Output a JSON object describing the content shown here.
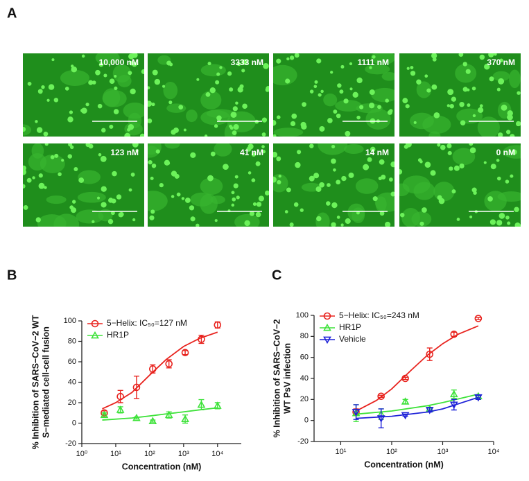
{
  "panel_labels": [
    "A",
    "B",
    "C"
  ],
  "micrographs": [
    "10,000 nM",
    "3333 nM",
    "1111 nM",
    "370 nM",
    "123 nM",
    "41 nM",
    "14 nM",
    "0 nM"
  ],
  "chart_data": [
    {
      "type": "scatter",
      "log_x": true,
      "xlabel": "Concentration (nM)",
      "ylabel": [
        "% Inhibition of SARS−CoV−2 WT",
        "S−mediated cell-cell fusion"
      ],
      "xlim": [
        1,
        50000
      ],
      "xticks": [
        {
          "value": 1,
          "label": "10⁰"
        },
        {
          "value": 10,
          "label": "10¹"
        },
        {
          "value": 100,
          "label": "10²"
        },
        {
          "value": 1000,
          "label": "10³"
        },
        {
          "value": 10000,
          "label": "10⁴"
        }
      ],
      "ylim": [
        -20,
        100
      ],
      "yticks": [
        -20,
        0,
        20,
        40,
        60,
        80,
        100
      ],
      "series": [
        {
          "name": "5−Helix: IC₅₀=127 nM",
          "color": "#e8231e",
          "marker": "circle",
          "x": [
            4.6,
            13.7,
            41,
            123,
            370,
            1111,
            3333,
            10000
          ],
          "values": [
            10,
            26,
            35,
            53,
            58,
            69,
            82,
            96
          ],
          "errors": [
            2,
            6,
            11,
            4,
            4,
            2,
            4,
            3
          ],
          "fit_x": [
            4,
            10,
            30,
            100,
            300,
            1000,
            3000,
            10000
          ],
          "fit": [
            14,
            20,
            30,
            47,
            62,
            75,
            83,
            89
          ]
        },
        {
          "name": "HR1P",
          "color": "#3ee23a",
          "marker": "triangle-up",
          "x": [
            4.6,
            13.7,
            41,
            123,
            370,
            1111,
            3333,
            10000
          ],
          "values": [
            8,
            13,
            5,
            2,
            8,
            4,
            18,
            17
          ],
          "errors": [
            2,
            3,
            1,
            1,
            3,
            4,
            5,
            3
          ],
          "fit_x": [
            4,
            30,
            100,
            300,
            1000,
            3000,
            10000
          ],
          "fit": [
            3,
            5,
            7,
            9,
            11,
            13,
            15
          ]
        }
      ]
    },
    {
      "type": "scatter",
      "log_x": true,
      "xlabel": "Concentration (nM)",
      "ylabel": [
        "% Inhibition of SARS−CoV−2",
        "WT PsV infection"
      ],
      "xlim": [
        3,
        10000
      ],
      "xticks": [
        {
          "value": 10,
          "label": "10¹"
        },
        {
          "value": 100,
          "label": "10²"
        },
        {
          "value": 1000,
          "label": "10³"
        },
        {
          "value": 10000,
          "label": "10⁴"
        }
      ],
      "ylim": [
        -20,
        100
      ],
      "yticks": [
        -20,
        0,
        20,
        40,
        60,
        80,
        100
      ],
      "series": [
        {
          "name": "5−Helix: IC₅₀=243 nM",
          "color": "#e8231e",
          "marker": "circle",
          "x": [
            20,
            62,
            185,
            556,
            1667,
            5000
          ],
          "values": [
            8,
            23,
            40,
            63,
            82,
            97
          ],
          "errors": [
            3,
            1,
            1,
            6,
            2,
            1
          ],
          "fit_x": [
            20,
            50,
            100,
            243,
            500,
            1000,
            2000,
            5000
          ],
          "fit": [
            9,
            19,
            30,
            48,
            62,
            73,
            82,
            90
          ]
        },
        {
          "name": "HR1P",
          "color": "#3ee23a",
          "marker": "triangle-up",
          "x": [
            20,
            62,
            185,
            556,
            1667,
            5000
          ],
          "values": [
            7,
            6,
            18,
            11,
            25,
            23
          ],
          "errors": [
            8,
            5,
            2,
            1,
            4,
            1
          ],
          "fit_x": [
            20,
            100,
            500,
            1000,
            5000
          ],
          "fit": [
            6,
            9,
            14,
            17,
            25
          ]
        },
        {
          "name": "Vehicle",
          "color": "#1e22d8",
          "marker": "triangle-down",
          "x": [
            20,
            62,
            185,
            556,
            1667,
            5000
          ],
          "values": [
            8,
            2,
            5,
            10,
            15,
            22
          ],
          "errors": [
            7,
            9,
            1,
            2,
            5,
            2
          ],
          "fit_x": [
            20,
            100,
            500,
            1000,
            5000
          ],
          "fit": [
            2,
            4,
            8,
            11,
            22
          ]
        }
      ]
    }
  ]
}
